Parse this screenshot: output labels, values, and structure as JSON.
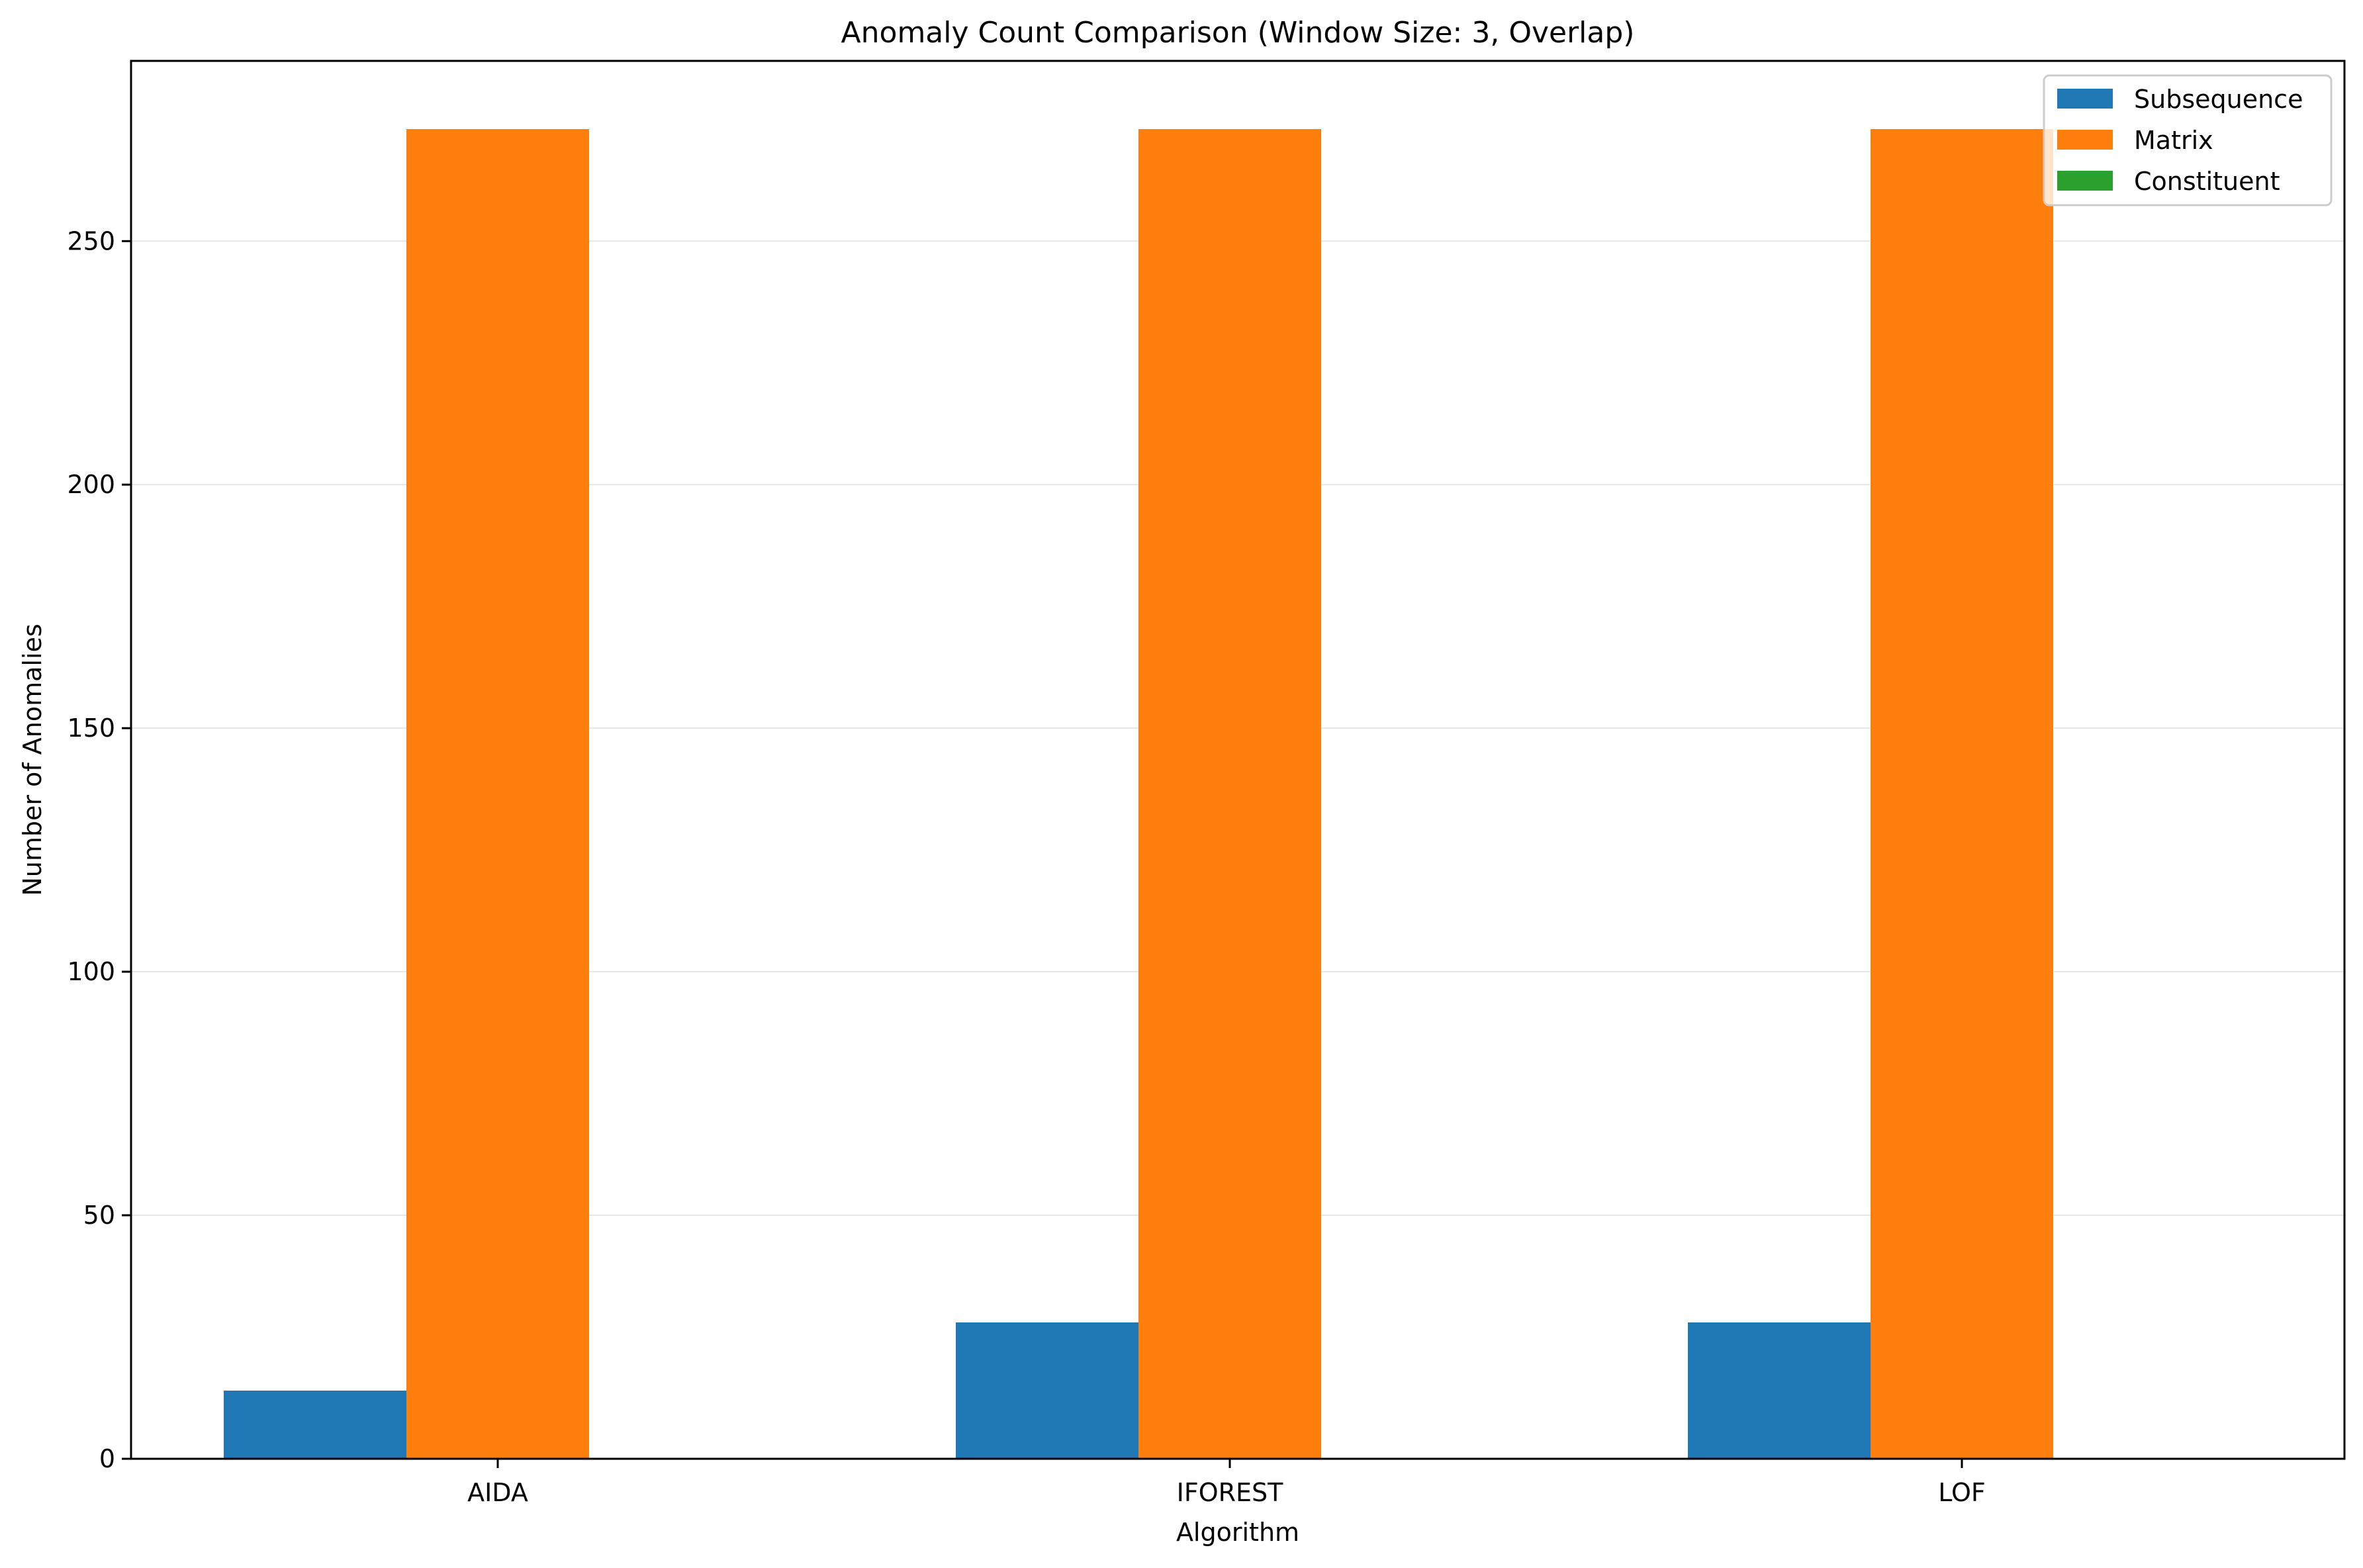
{
  "chart_data": {
    "type": "bar",
    "title": "Anomaly Count Comparison (Window Size: 3, Overlap)",
    "xlabel": "Algorithm",
    "ylabel": "Number of Anomalies",
    "categories": [
      "AIDA",
      "IFOREST",
      "LOF"
    ],
    "series": [
      {
        "name": "Subsequence",
        "color": "#1f77b4",
        "values": [
          14,
          28,
          28
        ]
      },
      {
        "name": "Matrix",
        "color": "#ff7f0e",
        "values": [
          273,
          273,
          273
        ]
      },
      {
        "name": "Constituent",
        "color": "#2ca02c",
        "values": [
          0,
          0,
          0
        ]
      }
    ],
    "ylim": [
      0,
      287
    ],
    "yticks": [
      0,
      50,
      100,
      150,
      200,
      250
    ],
    "grid": "y",
    "legend_position": "top-right"
  }
}
